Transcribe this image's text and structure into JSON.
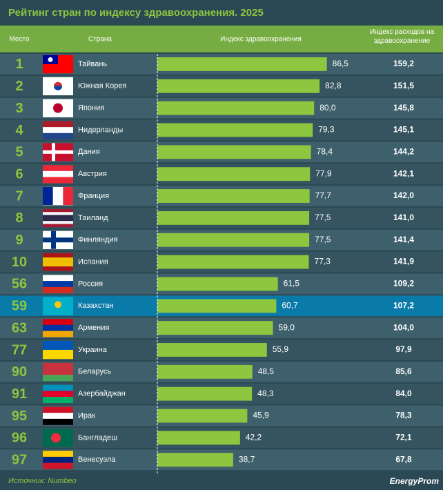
{
  "chart_data": {
    "type": "bar",
    "orientation": "horizontal",
    "title": "Рейтинг стран по индексу здравоохранения. 2025",
    "column_headers": [
      "Место",
      "Страна",
      "Индекс здравоохранения",
      "Индекс расходов на здравоохранение"
    ],
    "ranks": [
      1,
      2,
      3,
      4,
      5,
      6,
      7,
      8,
      9,
      10,
      56,
      59,
      63,
      77,
      90,
      91,
      95,
      96,
      97
    ],
    "categories": [
      "Тайвань",
      "Южная Корея",
      "Япония",
      "Нидерланды",
      "Дания",
      "Австрия",
      "Франция",
      "Таиланд",
      "Финляндия",
      "Испания",
      "Россия",
      "Казахстан",
      "Армения",
      "Украина",
      "Беларусь",
      "Азербайджан",
      "Ирак",
      "Бангладеш",
      "Венесуэла"
    ],
    "values": [
      86.5,
      82.8,
      80.0,
      79.3,
      78.4,
      77.9,
      77.7,
      77.5,
      77.5,
      77.3,
      61.5,
      60.7,
      59.0,
      55.9,
      48.5,
      48.3,
      45.9,
      42.2,
      38.7
    ],
    "value_labels": [
      "86,5",
      "82,8",
      "80,0",
      "79,3",
      "78,4",
      "77,9",
      "77,7",
      "77,5",
      "77,5",
      "77,3",
      "61,5",
      "60,7",
      "59,0",
      "55,9",
      "48,5",
      "48,3",
      "45,9",
      "42,2",
      "38,7"
    ],
    "spending": [
      159.2,
      151.5,
      145.8,
      145.1,
      144.2,
      142.1,
      142.0,
      141.0,
      141.4,
      141.9,
      109.2,
      107.2,
      104.0,
      97.9,
      85.6,
      84.0,
      78.3,
      72.1,
      67.8
    ],
    "spending_labels": [
      "159,2",
      "151,5",
      "145,8",
      "145,1",
      "144,2",
      "142,1",
      "142,0",
      "141,0",
      "141,4",
      "141,9",
      "109,2",
      "107,2",
      "104,0",
      "97,9",
      "85,6",
      "84,0",
      "78,3",
      "72,1",
      "67,8"
    ],
    "color": "#8dc63f",
    "xlim": [
      0,
      100
    ],
    "highlight_index": 11,
    "source": "Источник: Numbeo",
    "logo": "EnergyProm"
  }
}
